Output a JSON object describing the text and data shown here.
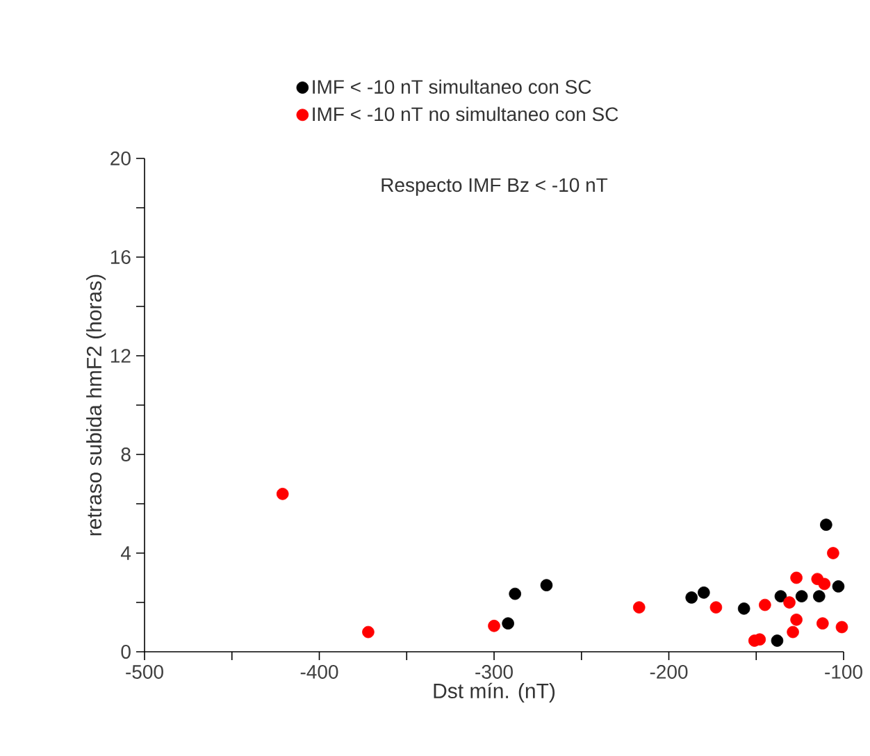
{
  "chart_data": {
    "type": "scatter",
    "xlabel": "Dst mín. (nT)",
    "ylabel": "retraso subida hmF2 (horas)",
    "annotations": [
      "Respecto IMF Bz < -10 nT"
    ],
    "xlim": [
      -500,
      -100
    ],
    "ylim": [
      0,
      20
    ],
    "xticks": [
      -500,
      {
        "value": -450,
        "label": null
      },
      -400,
      {
        "value": -350,
        "label": null
      },
      -300,
      {
        "value": -250,
        "label": null
      },
      -200,
      {
        "value": -150,
        "label": null
      },
      -100
    ],
    "yticks": [
      0,
      {
        "value": 2,
        "label": null
      },
      4,
      {
        "value": 6,
        "label": null
      },
      8,
      {
        "value": 10,
        "label": null
      },
      12,
      {
        "value": 14,
        "label": null
      },
      16,
      {
        "value": 18,
        "label": null
      },
      20
    ],
    "marker": "circle",
    "legend": "top",
    "grid": false,
    "series": [
      {
        "name": "IMF < -10 nT simultaneo con SC",
        "color": "#000000",
        "x": [
          -288,
          -270,
          -292,
          -187,
          -180,
          -157,
          -136,
          -138,
          -124,
          -114,
          -110,
          -103
        ],
        "values": [
          2.35,
          2.7,
          1.15,
          2.2,
          2.4,
          1.75,
          2.25,
          0.45,
          2.25,
          2.25,
          5.15,
          2.65
        ]
      },
      {
        "name": "IMF < -10 nT no simultaneo con SC",
        "color": "#ff0000",
        "x": [
          -421,
          -372,
          -300,
          -217,
          -173,
          -145,
          -148,
          -151,
          -131,
          -127,
          -127,
          -129,
          -115,
          -111,
          -106,
          -112,
          -101
        ],
        "values": [
          6.4,
          0.8,
          1.05,
          1.8,
          1.8,
          1.9,
          0.5,
          0.45,
          2.0,
          3.0,
          1.3,
          0.8,
          2.95,
          2.75,
          4.0,
          1.15,
          1.0
        ]
      }
    ]
  }
}
